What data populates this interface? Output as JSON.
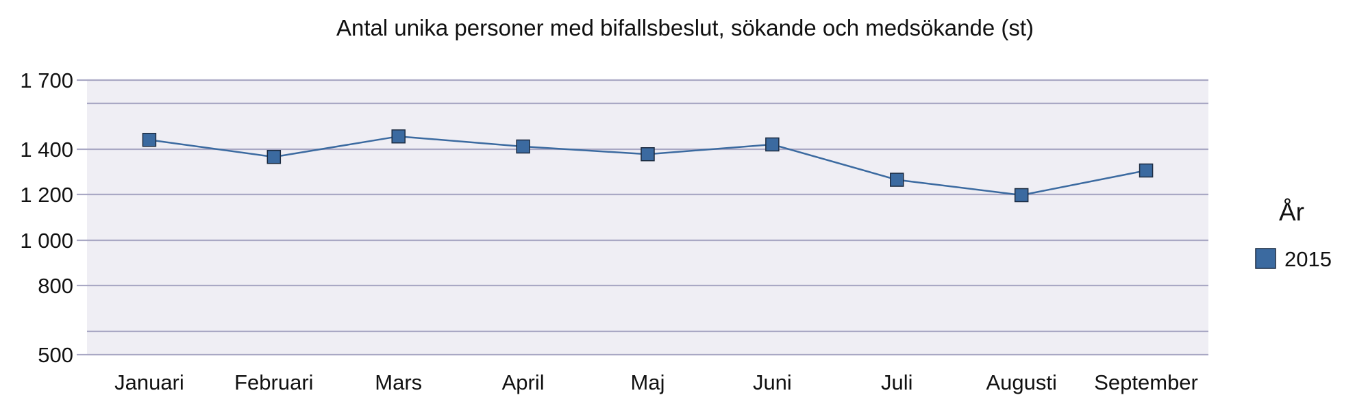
{
  "chart_data": {
    "type": "line",
    "title": "Antal unika personer med bifallsbeslut, sökande och medsökande (st)",
    "xlabel": "",
    "ylabel": "",
    "categories": [
      "Januari",
      "Februari",
      "Mars",
      "April",
      "Maj",
      "Juni",
      "Juli",
      "Augusti",
      "September"
    ],
    "series": [
      {
        "name": "2015",
        "values": [
          1441,
          1366,
          1456,
          1412,
          1378,
          1421,
          1265,
          1197,
          1306
        ],
        "color": "#3b6aa0"
      }
    ],
    "yticks": [
      {
        "value": 500,
        "label": "500"
      },
      {
        "value": 800,
        "label": "800"
      },
      {
        "value": 1000,
        "label": "1 000"
      },
      {
        "value": 1200,
        "label": "1 200"
      },
      {
        "value": 1400,
        "label": "1 400"
      },
      {
        "value": 1700,
        "label": "1 700"
      }
    ],
    "gridlines": [
      500,
      600,
      800,
      1000,
      1200,
      1400,
      1600,
      1700
    ],
    "ylim": [
      500,
      1700
    ],
    "grid": true,
    "legend": {
      "title": "År",
      "placement": "right"
    },
    "colors": {
      "plot_background": "#efeef4",
      "gridline": "#a9a8c4",
      "line": "#3b6aa0",
      "marker_edge": "#1c2b40"
    }
  }
}
